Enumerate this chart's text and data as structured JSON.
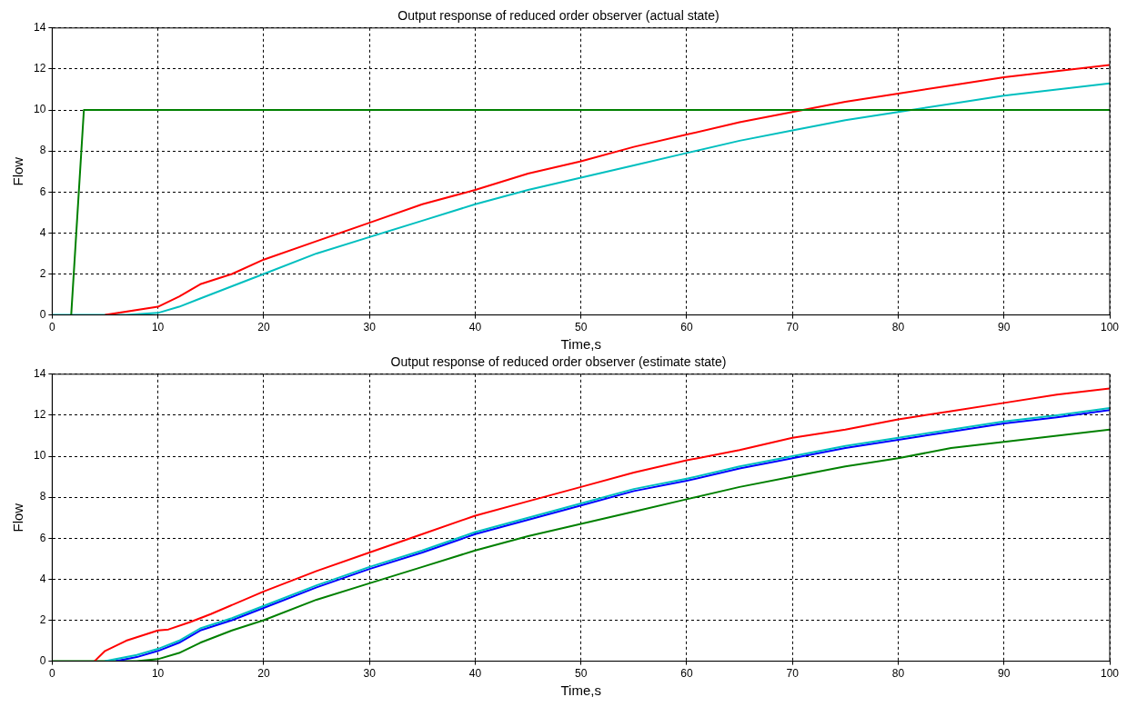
{
  "chart_data": [
    {
      "type": "line",
      "title": "Output response of reduced order observer (actual state)",
      "xlabel": "Time,s",
      "ylabel": "Flow",
      "xlim": [
        0,
        100
      ],
      "xticks": [
        0,
        10,
        20,
        30,
        40,
        50,
        60,
        70,
        80,
        90,
        100
      ],
      "ylim": [
        0,
        14
      ],
      "yticks": [
        0,
        2,
        4,
        6,
        8,
        10,
        12,
        14
      ],
      "grid": true,
      "legend": false,
      "marker": "none",
      "line_style": "solid",
      "series": [
        {
          "color": "#008000",
          "x": [
            1.8,
            3,
            100
          ],
          "values": [
            0,
            10,
            10
          ]
        },
        {
          "color": "#ff0000",
          "x": [
            5,
            10,
            12,
            14,
            17,
            20,
            25,
            30,
            35,
            40,
            45,
            50,
            55,
            60,
            65,
            70,
            75,
            80,
            85,
            90,
            95,
            100
          ],
          "values": [
            0,
            0.4,
            0.9,
            1.5,
            2.0,
            2.7,
            3.6,
            4.5,
            5.4,
            6.1,
            6.9,
            7.5,
            8.2,
            8.8,
            9.4,
            9.9,
            10.4,
            10.8,
            11.2,
            11.6,
            11.9,
            12.2
          ]
        },
        {
          "color": "#00bfbf",
          "x": [
            0,
            7,
            10,
            12,
            14,
            17,
            20,
            25,
            30,
            35,
            40,
            45,
            50,
            55,
            60,
            65,
            70,
            75,
            80,
            85,
            90,
            95,
            100
          ],
          "values": [
            0,
            0,
            0.1,
            0.4,
            0.8,
            1.4,
            2.0,
            3.0,
            3.8,
            4.6,
            5.4,
            6.1,
            6.7,
            7.3,
            7.9,
            8.5,
            9.0,
            9.5,
            9.9,
            10.3,
            10.7,
            11.0,
            11.3
          ]
        }
      ]
    },
    {
      "type": "line",
      "title": "Output response of reduced order observer (estimate state)",
      "xlabel": "Time,s",
      "ylabel": "Flow",
      "xlim": [
        0,
        100
      ],
      "xticks": [
        0,
        10,
        20,
        30,
        40,
        50,
        60,
        70,
        80,
        90,
        100
      ],
      "ylim": [
        0,
        14
      ],
      "yticks": [
        0,
        2,
        4,
        6,
        8,
        10,
        12,
        14
      ],
      "grid": true,
      "legend": false,
      "marker": "none",
      "line_style": "solid",
      "series": [
        {
          "color": "#ff0000",
          "x": [
            4,
            5,
            7,
            10,
            11,
            13,
            15,
            20,
            25,
            30,
            35,
            40,
            45,
            50,
            55,
            60,
            65,
            70,
            75,
            80,
            85,
            90,
            95,
            100
          ],
          "values": [
            0,
            0.5,
            1.0,
            1.5,
            1.55,
            1.9,
            2.3,
            3.4,
            4.4,
            5.3,
            6.2,
            7.1,
            7.8,
            8.5,
            9.2,
            9.8,
            10.3,
            10.9,
            11.3,
            11.8,
            12.2,
            12.6,
            13.0,
            13.3
          ]
        },
        {
          "color": "#00bfbf",
          "x": [
            5,
            8,
            10,
            12,
            14,
            17,
            20,
            25,
            30,
            35,
            40,
            45,
            50,
            55,
            60,
            65,
            70,
            75,
            80,
            85,
            90,
            95,
            100
          ],
          "values": [
            0,
            0.3,
            0.6,
            1.0,
            1.6,
            2.1,
            2.7,
            3.7,
            4.6,
            5.4,
            6.3,
            7.0,
            7.7,
            8.4,
            8.9,
            9.5,
            10.0,
            10.5,
            10.9,
            11.3,
            11.7,
            12.0,
            12.35
          ]
        },
        {
          "color": "#0000ff",
          "x": [
            6,
            8,
            10,
            12,
            14,
            17,
            20,
            25,
            30,
            35,
            40,
            45,
            50,
            55,
            60,
            65,
            70,
            75,
            80,
            85,
            90,
            95,
            100
          ],
          "values": [
            0,
            0.2,
            0.5,
            0.9,
            1.5,
            2.0,
            2.6,
            3.6,
            4.5,
            5.3,
            6.2,
            6.9,
            7.6,
            8.3,
            8.8,
            9.4,
            9.9,
            10.4,
            10.8,
            11.2,
            11.6,
            11.9,
            12.25
          ]
        },
        {
          "color": "#008000",
          "x": [
            0,
            8,
            10,
            12,
            14,
            17,
            20,
            25,
            30,
            35,
            40,
            45,
            50,
            55,
            60,
            65,
            70,
            75,
            80,
            85,
            90,
            95,
            100
          ],
          "values": [
            0,
            0,
            0.1,
            0.4,
            0.9,
            1.5,
            2.0,
            3.0,
            3.8,
            4.6,
            5.4,
            6.1,
            6.7,
            7.3,
            7.9,
            8.5,
            9.0,
            9.5,
            9.9,
            10.4,
            10.7,
            11.0,
            11.3
          ]
        }
      ]
    }
  ]
}
